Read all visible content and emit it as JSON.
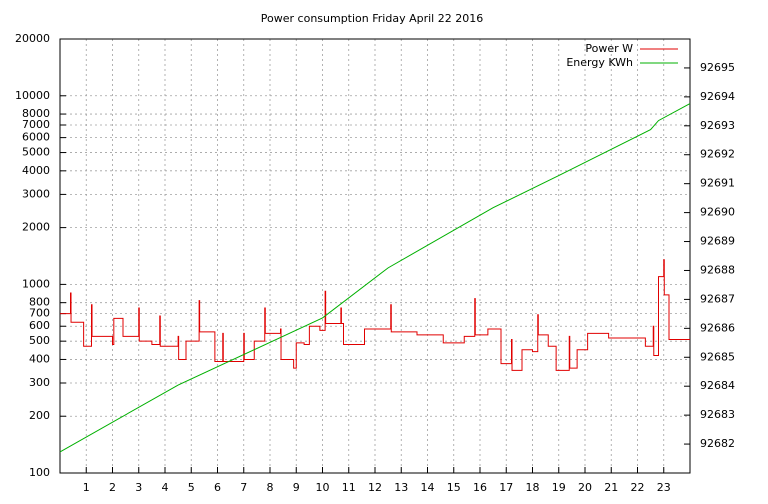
{
  "chart_data": {
    "type": "line",
    "title": "Power consumption Friday April 22 2016",
    "xlim": [
      0,
      24
    ],
    "xticks": [
      1,
      2,
      3,
      4,
      5,
      6,
      7,
      8,
      9,
      10,
      11,
      12,
      13,
      14,
      15,
      16,
      17,
      18,
      19,
      20,
      21,
      22,
      23
    ],
    "ylim": [
      100,
      20000
    ],
    "yscale": "log",
    "yticks": [
      100,
      200,
      300,
      400,
      500,
      600,
      700,
      800,
      1000,
      2000,
      3000,
      4000,
      5000,
      6000,
      7000,
      8000,
      10000,
      20000
    ],
    "y2lim": [
      92681,
      92696
    ],
    "y2ticks": [
      92682,
      92683,
      92684,
      92685,
      92686,
      92687,
      92688,
      92689,
      92690,
      92691,
      92692,
      92693,
      92694,
      92695
    ],
    "grid": true,
    "legend": "top-right",
    "series": [
      {
        "name": "Power W",
        "color": "#e00000",
        "step": "post",
        "x": [
          0,
          0.4,
          0.42,
          0.9,
          1.2,
          1.22,
          2,
          2.05,
          2.4,
          3,
          3.02,
          3.5,
          3.8,
          3.82,
          4.5,
          4.52,
          4.7,
          4.8,
          5.3,
          5.32,
          5.9,
          6.2,
          6.22,
          7,
          7.02,
          7.4,
          7.8,
          7.82,
          8.4,
          8.42,
          8.9,
          9,
          9.3,
          9.5,
          9.9,
          10.1,
          10.12,
          10.7,
          10.72,
          10.8,
          11.6,
          12.6,
          12.62,
          13.6,
          14.6,
          15.4,
          15.8,
          15.82,
          16.3,
          16.8,
          17.2,
          17.22,
          17.6,
          18,
          18.2,
          18.22,
          18.6,
          18.9,
          19.4,
          19.42,
          19.7,
          20.1,
          20.9,
          22.3,
          22.6,
          22.62,
          22.8,
          23,
          23.02,
          23.2,
          23.8,
          24
        ],
        "values": [
          700,
          900,
          630,
          470,
          780,
          530,
          480,
          660,
          530,
          750,
          500,
          480,
          680,
          470,
          530,
          400,
          400,
          500,
          820,
          560,
          390,
          550,
          390,
          550,
          400,
          500,
          750,
          550,
          580,
          400,
          360,
          490,
          480,
          600,
          570,
          920,
          620,
          750,
          620,
          480,
          580,
          780,
          560,
          540,
          490,
          530,
          840,
          540,
          580,
          380,
          510,
          350,
          450,
          440,
          690,
          540,
          470,
          350,
          530,
          360,
          450,
          550,
          520,
          470,
          600,
          420,
          1100,
          1350,
          880,
          510,
          510,
          510
        ]
      },
      {
        "name": "Energy KWh",
        "color": "#00b000",
        "axis": "y2",
        "x": [
          0,
          4.5,
          10,
          12.5,
          16.5,
          19,
          22.5,
          22.8,
          24
        ],
        "values": [
          92681.73,
          92684.04,
          92686.36,
          92688.09,
          92690.17,
          92691.28,
          92692.87,
          92693.18,
          92693.77
        ]
      }
    ]
  }
}
